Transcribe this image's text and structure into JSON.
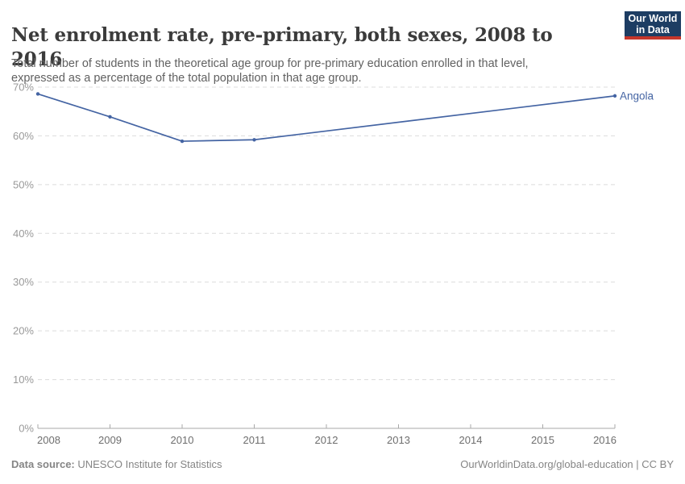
{
  "header": {
    "title": "Net enrolment rate, pre-primary, both sexes, 2008 to 2016",
    "subtitle": "Total number of students in the theoretical age group for pre-primary education enrolled in that level, expressed as a percentage of the total population in that age group.",
    "logo": {
      "line1": "Our World",
      "line2": "in Data"
    }
  },
  "chart_data": {
    "type": "line",
    "title": "Net enrolment rate, pre-primary, both sexes, 2008 to 2016",
    "xlabel": "",
    "ylabel": "",
    "xlim": [
      2008,
      2016
    ],
    "ylim": [
      0,
      70
    ],
    "grid": "horizontal-dashed",
    "legend_position": "end-of-line-label",
    "x_ticks": [
      {
        "value": 2008,
        "label": "2008"
      },
      {
        "value": 2009,
        "label": "2009"
      },
      {
        "value": 2010,
        "label": "2010"
      },
      {
        "value": 2011,
        "label": "2011"
      },
      {
        "value": 2012,
        "label": "2012"
      },
      {
        "value": 2013,
        "label": "2013"
      },
      {
        "value": 2014,
        "label": "2014"
      },
      {
        "value": 2015,
        "label": "2015"
      },
      {
        "value": 2016,
        "label": "2016"
      }
    ],
    "y_ticks": [
      {
        "value": 0,
        "label": "0%"
      },
      {
        "value": 10,
        "label": "10%"
      },
      {
        "value": 20,
        "label": "20%"
      },
      {
        "value": 30,
        "label": "30%"
      },
      {
        "value": 40,
        "label": "40%"
      },
      {
        "value": 50,
        "label": "50%"
      },
      {
        "value": 60,
        "label": "60%"
      },
      {
        "value": 70,
        "label": "70%"
      }
    ],
    "series": [
      {
        "name": "Angola",
        "color": "#4464a3",
        "points": [
          {
            "x": 2008,
            "y": 68.6
          },
          {
            "x": 2009,
            "y": 63.9
          },
          {
            "x": 2010,
            "y": 58.9
          },
          {
            "x": 2011,
            "y": 59.2
          },
          {
            "x": 2016,
            "y": 68.2
          }
        ]
      }
    ]
  },
  "footer": {
    "source_label": "Data source:",
    "source_value": " UNESCO Institute for Statistics",
    "right_text": "OurWorldinData.org/global-education | CC BY"
  },
  "colors": {
    "line": "#4464a3",
    "entity_label": "#4464a3",
    "grid": "#dcdcdc",
    "axis": "#a8a8a8",
    "y_tick_label": "#999999",
    "x_tick_label": "#6e6e6e",
    "title": "#3b3b3b",
    "subtitle": "#616161",
    "footer": "#858585",
    "logo_bg": "#1d3d63",
    "logo_accent": "#c5362b"
  }
}
